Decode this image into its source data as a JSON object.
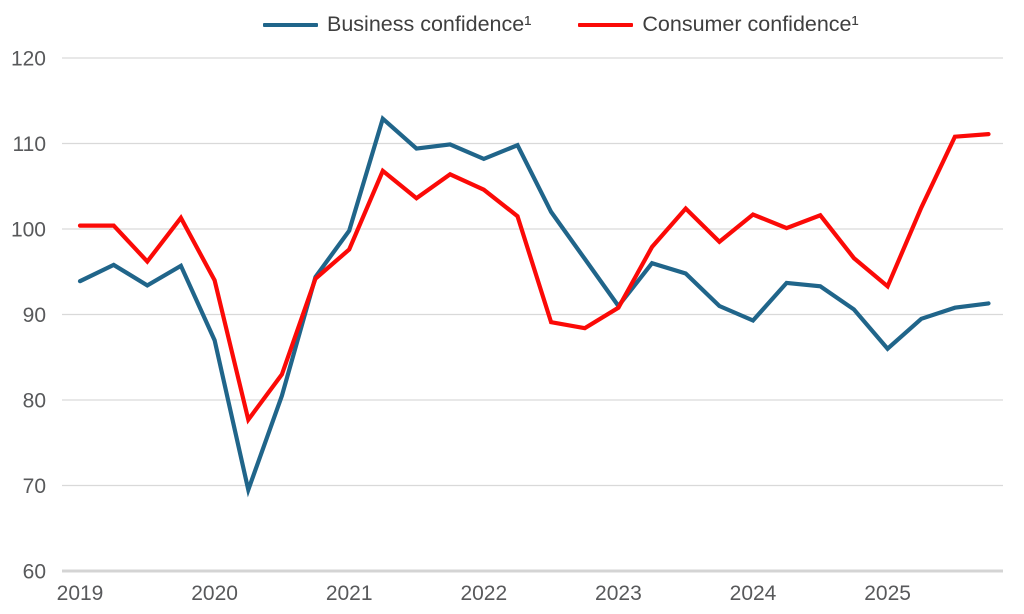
{
  "legend": {
    "items": [
      {
        "label": "Business confidence¹",
        "color": "#20658a"
      },
      {
        "label": "Consumer confidence¹",
        "color": "#fb0a07"
      }
    ]
  },
  "chart_data": {
    "type": "line",
    "title": "",
    "categories": [
      "2019 Q1",
      "2019 Q2",
      "2019 Q3",
      "2019 Q4",
      "2020 Q1",
      "2020 Q2",
      "2020 Q3",
      "2020 Q4",
      "2021 Q1",
      "2021 Q2",
      "2021 Q3",
      "2021 Q4",
      "2022 Q1",
      "2022 Q2",
      "2022 Q3",
      "2022 Q4",
      "2023 Q1",
      "2023 Q2",
      "2023 Q3",
      "2023 Q4",
      "2024 Q1",
      "2024 Q2",
      "2024 Q3",
      "2024 Q4",
      "2025 Q1",
      "2025 Q2",
      "2025 Q3",
      "2025 Q4"
    ],
    "x_year_labels": [
      "2019",
      "2020",
      "2021",
      "2022",
      "2023",
      "2024",
      "2025"
    ],
    "points_per_year": 4,
    "series": [
      {
        "name": "Business confidence¹",
        "color": "#20658a",
        "values": [
          93.9,
          95.8,
          93.4,
          95.7,
          87.0,
          69.5,
          80.5,
          94.4,
          99.8,
          112.9,
          109.4,
          109.9,
          108.2,
          109.8,
          102.0,
          96.5,
          91.0,
          96.0,
          94.8,
          91.0,
          89.3,
          93.7,
          93.3,
          90.6,
          86.0,
          89.5,
          90.8,
          91.3
        ]
      },
      {
        "name": "Consumer confidence¹",
        "color": "#fb0a07",
        "values": [
          100.4,
          100.4,
          96.2,
          101.3,
          94.0,
          77.7,
          83.0,
          94.2,
          97.6,
          106.8,
          103.6,
          106.4,
          104.6,
          101.5,
          89.1,
          88.4,
          90.8,
          97.9,
          102.4,
          98.5,
          101.7,
          100.1,
          101.6,
          96.6,
          93.3,
          102.5,
          110.8,
          111.1
        ]
      }
    ],
    "ylim": [
      60,
      120
    ],
    "yticks": [
      60,
      70,
      80,
      90,
      100,
      110,
      120
    ],
    "grid": "horizontal",
    "legend_position": "top",
    "colors": {
      "grid_line": "#d9d9d9",
      "axis_base_line": "#d4d4d4",
      "tick_text": "#58595b",
      "legend_text": "#3f3f3f",
      "background": "#ffffff"
    }
  }
}
